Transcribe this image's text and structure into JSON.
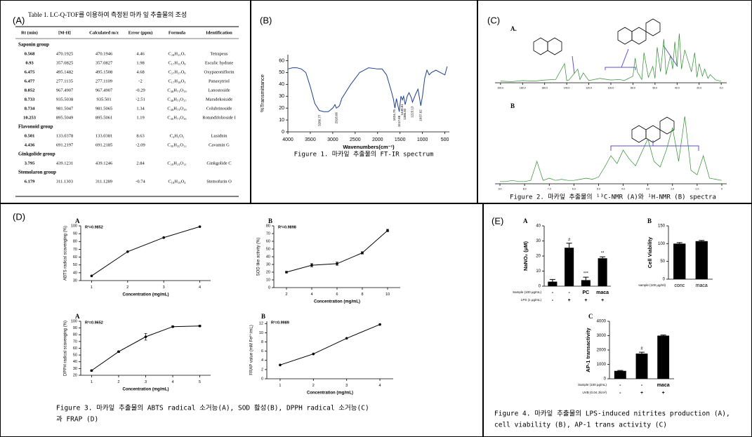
{
  "panel_labels": [
    "(A)",
    "(B)",
    "(C)",
    "(D)",
    "(E)"
  ],
  "table": {
    "title": "Table 1. LC-Q-TOF를 이용하여 측정된 마카 잎 추출물의 조성",
    "columns": [
      "Rt (min)",
      "[M-H]",
      "Calculated m/z",
      "Error (ppm)",
      "Formula",
      "Identification"
    ],
    "groups": [
      {
        "name": "Saponin group",
        "rows": [
          [
            "0.568",
            "470.1925",
            "470.1946",
            "4.46",
            "C₂₈H₂₅O₇",
            "Tetrapeus"
          ],
          [
            "0.93",
            "357.0825",
            "357.0827",
            "1.98",
            "C₁₇H₁₅O₉",
            "Esculic hydrate"
          ],
          [
            "6.475",
            "495.1482",
            "495.1508",
            "4.68",
            "C₂₇H₂₇O₉",
            "Oxypaeoniflorin"
          ],
          [
            "6.477",
            "277.1135",
            "277.1109",
            "-2",
            "C₁₇H₁₈O₃",
            "Panaxytriol"
          ],
          [
            "8.052",
            "967.4907",
            "967.4907",
            "-0.29",
            "C₄₈H₇₁O₁₉",
            "Lanostoside"
          ],
          [
            "8.733",
            "935.5038",
            "935.501",
            "-2.51",
            "C₄₈H₇₁O₁₇",
            "Marsdekoiside"
          ],
          [
            "8.734",
            "981.5047",
            "981.5065",
            "1.34",
            "C₄₈H₇₃O₁₉",
            "Colubrinoside"
          ],
          [
            "10.253",
            "895.5049",
            "895.5061",
            "1.19",
            "C₄₆H₇₁O₁₆",
            "Rotundifolioside I"
          ]
        ]
      },
      {
        "name": "Flavonoid group",
        "rows": [
          [
            "0.501",
            "133.0378",
            "133.0381",
            "8.63",
            "C₄H₅O₅",
            "Lusidnin"
          ],
          [
            "4.436",
            "691.2197",
            "691.2185",
            "-2.09",
            "C₃₆H₃₅O₁₂",
            "Cavamin G"
          ]
        ]
      },
      {
        "name": "Ginkgolide group",
        "rows": [
          [
            "3.795",
            "439.1231",
            "439.1246",
            "2.84",
            "C₂₀H₂₃O₁₁",
            "Ginkgolide C"
          ]
        ]
      },
      {
        "name": "Stemolaron group",
        "rows": [
          [
            "6.179",
            "311.1303",
            "311.1289",
            "-0.74",
            "C₁₈H₁₉O₄",
            "Stemofurin O"
          ]
        ]
      }
    ]
  },
  "figure_captions": {
    "fig1": "Figure 1. 마카잎 추출물의 FT-IR spectrum",
    "fig2": "Figure 2. 마카잎 추출물의 ¹³C-NMR (A)와 ¹H-NMR (B) spectra",
    "fig3": [
      "Figure 3. 마카잎 추출물의 ABTS radical 소거능(A), SOD 활성(B), DPPH radical 소거능(C)",
      "과 FRAP (D)"
    ],
    "fig4": [
      "Figure 4. 마카잎 추출물의 LPS-induced nitrites production (A),",
      "cell viability (B), AP-1 trans activity (C)"
    ]
  },
  "chart_data": [
    {
      "type": "line",
      "xlabel": "Wavenumbers(cm⁻¹)",
      "ylabel": "%Transmittance",
      "xlim": [
        4000,
        400
      ],
      "xticks": [
        4000,
        3500,
        3000,
        2500,
        2000,
        1500,
        1000,
        500
      ],
      "ylim": [
        0,
        65
      ],
      "yticks": [
        0,
        10,
        20,
        30,
        40,
        50,
        60
      ],
      "x": [
        4000,
        3900,
        3800,
        3700,
        3600,
        3500,
        3400,
        3300,
        3200,
        3100,
        3000,
        2950,
        2920,
        2880,
        2850,
        2800,
        2600,
        2400,
        2200,
        2000,
        1900,
        1800,
        1700,
        1650,
        1614,
        1580,
        1517,
        1480,
        1448,
        1420,
        1386,
        1340,
        1300,
        1250,
        1223,
        1150,
        1100,
        1037,
        1000,
        950,
        900,
        850,
        800,
        700,
        600,
        500,
        450
      ],
      "series": [
        {
          "color": "#1f3f8f",
          "values": [
            53,
            54,
            54,
            53,
            50,
            38,
            24,
            18,
            17,
            17,
            20,
            23,
            20,
            21,
            22,
            28,
            40,
            50,
            54,
            53,
            53,
            48,
            35,
            28,
            20,
            28,
            17,
            30,
            27,
            30,
            23,
            30,
            33,
            29,
            25,
            32,
            36,
            22,
            30,
            45,
            52,
            48,
            50,
            52,
            50,
            48,
            55
          ]
        }
      ],
      "peaks": [
        3286.77,
        2918.66,
        1624.75,
        1517.68,
        1448.61,
        1386.82,
        1223.13,
        1037.62
      ]
    },
    {
      "type": "line",
      "label": "A.",
      "xlim": [
        205,
        -5
      ],
      "xticks": [
        {
          "value": 200,
          "label": "200.0"
        },
        {
          "value": 180,
          "label": "180.0"
        },
        {
          "value": 160,
          "label": "160.0"
        },
        {
          "value": 140,
          "label": "140.0"
        },
        {
          "value": 120,
          "label": "120.0"
        },
        {
          "value": 100,
          "label": "100.0"
        },
        {
          "value": 80,
          "label": "80.0"
        },
        {
          "value": 60,
          "label": "60.0"
        },
        {
          "value": 40,
          "label": "40.0"
        },
        {
          "value": 20,
          "label": "20.0"
        },
        {
          "value": 0,
          "label": "0.0"
        }
      ],
      "ylim": [
        0,
        10
      ],
      "x": [
        200,
        190,
        180,
        170,
        160,
        150,
        142,
        140,
        138,
        130,
        128,
        125,
        120,
        110,
        100,
        92,
        88,
        80,
        78,
        76,
        72,
        70,
        66,
        62,
        60,
        58,
        55,
        52,
        50,
        46,
        44,
        42,
        40,
        38,
        36,
        33,
        30,
        27,
        24,
        22,
        20,
        17,
        15,
        12,
        10,
        5,
        0
      ],
      "series": [
        {
          "color": "#2e8b2e",
          "values": [
            0.3,
            0.2,
            0.4,
            0.3,
            0.5,
            0.6,
            3.5,
            0.4,
            0.5,
            2.5,
            0.6,
            1.8,
            0.4,
            0.8,
            0.5,
            0.6,
            0.4,
            1.2,
            4.5,
            2.0,
            0.6,
            5.5,
            1.0,
            3.0,
            0.8,
            6.5,
            2.0,
            8.0,
            1.5,
            5.0,
            2.5,
            7.5,
            3.0,
            9.0,
            2.5,
            6.0,
            4.0,
            2.0,
            5.5,
            1.0,
            3.5,
            1.2,
            2.5,
            0.8,
            1.5,
            0.5,
            0.3
          ]
        }
      ]
    },
    {
      "type": "line",
      "label": "B",
      "xlim": [
        9.2,
        -0.2
      ],
      "xticks": [
        {
          "value": 9,
          "label": "9.0"
        },
        {
          "value": 8,
          "label": "8.0"
        },
        {
          "value": 7,
          "label": "7.0"
        },
        {
          "value": 6,
          "label": "6.0"
        },
        {
          "value": 5,
          "label": "5.0"
        },
        {
          "value": 4,
          "label": "4.0"
        },
        {
          "value": 3,
          "label": "3.0"
        },
        {
          "value": 2,
          "label": "2.0"
        },
        {
          "value": 1,
          "label": "1.0"
        },
        0
      ],
      "ylim": [
        0,
        7
      ],
      "x": [
        9,
        8.75,
        8.5,
        8.25,
        8,
        7.75,
        7.5,
        7.25,
        7,
        6.75,
        6.5,
        6.25,
        6,
        5.75,
        5.5,
        5.25,
        5,
        4.75,
        4.5,
        4.25,
        4,
        3.75,
        3.5,
        3.25,
        3,
        2.75,
        2.5,
        2.25,
        2,
        1.75,
        1.5,
        1.25,
        1,
        0.75,
        0.5,
        0.25,
        0
      ],
      "series": [
        {
          "color": "#2e8b2e",
          "values": [
            0.2,
            0.2,
            0.3,
            0.2,
            0.2,
            0.3,
            2,
            0.3,
            0.5,
            0.3,
            0.4,
            0.3,
            0.3,
            0.4,
            0.5,
            0.4,
            0.6,
            1.5,
            2.5,
            1.8,
            3,
            2.2,
            1.6,
            2.8,
            4,
            2,
            1.5,
            3,
            5,
            2,
            6,
            1.2,
            0.8,
            2.5,
            0.5,
            0.4,
            0.3
          ]
        }
      ]
    },
    {
      "type": "line",
      "label": "A",
      "r2": "R²=0.9852",
      "markers": true,
      "xlabel": "Concentration (mg/mL)",
      "ylabel": "ABTS radical scavenging (%)",
      "x": [
        1,
        2,
        3,
        4
      ],
      "xlim": [
        0.7,
        4.3
      ],
      "xticks": [
        1,
        2,
        3,
        4
      ],
      "ylim": [
        30,
        100
      ],
      "yticks": [
        30,
        40,
        50,
        60,
        70,
        80,
        90,
        100
      ],
      "series": [
        {
          "color": "#000000",
          "values": [
            36,
            67,
            85,
            99
          ]
        }
      ]
    },
    {
      "type": "line",
      "label": "B",
      "r2": "R²=0.9898",
      "markers": true,
      "xlabel": "Concentration (mg/mL)",
      "ylabel": "SOD like activity (%)",
      "x": [
        2,
        4,
        6,
        8,
        10
      ],
      "xlim": [
        1,
        11
      ],
      "xticks": [
        2,
        4,
        6,
        8,
        10
      ],
      "ylim": [
        0,
        80
      ],
      "yticks": [
        0,
        10,
        20,
        30,
        40,
        50,
        60,
        70,
        80
      ],
      "series": [
        {
          "color": "#000000",
          "values": [
            20,
            29,
            31,
            45,
            74
          ],
          "errors": [
            1,
            2,
            2,
            1.5,
            1.5
          ]
        }
      ]
    },
    {
      "type": "line",
      "label": "A",
      "r2": "R²=0.9652",
      "markers": true,
      "xlabel": "Concentration (mg/mL)",
      "ylabel": "DPPH radical scavenging (%)",
      "x": [
        1,
        2,
        3,
        4,
        5
      ],
      "xlim": [
        0.6,
        5.4
      ],
      "xticks": [
        1,
        2,
        3,
        4,
        5
      ],
      "ylim": [
        20,
        100
      ],
      "yticks": [
        20,
        30,
        40,
        50,
        60,
        70,
        80,
        90,
        100
      ],
      "series": [
        {
          "color": "#000000",
          "values": [
            27,
            55,
            77,
            92,
            93
          ],
          "errors": [
            1,
            1,
            5,
            1,
            1
          ]
        }
      ]
    },
    {
      "type": "line",
      "label": "B",
      "r2": "R²=0.9989",
      "markers": true,
      "xlabel": "Concentration (mg/mL)",
      "ylabel": "FRAP value (mM Fe²⁺/mL)",
      "x": [
        1,
        2,
        3,
        4
      ],
      "xlim": [
        0.6,
        4.4
      ],
      "xticks": [
        1,
        2,
        3,
        4
      ],
      "ylim": [
        0,
        12.5
      ],
      "yticks": [
        0,
        2,
        4,
        6,
        8,
        10,
        12
      ],
      "series": [
        {
          "color": "#000000",
          "values": [
            3,
            5.4,
            8.8,
            11.8
          ]
        }
      ]
    },
    {
      "type": "bar",
      "label": "A",
      "ylabel": "NaNO₂ (μM)",
      "color": "#000000",
      "ylim": [
        0,
        40
      ],
      "yticks": [
        0,
        10,
        20,
        30,
        40
      ],
      "values": [
        3,
        25.5,
        4,
        18.5
      ],
      "errors": [
        1.5,
        3,
        2,
        1
      ],
      "annotations": [
        null,
        "#",
        "***",
        "**"
      ],
      "condition_rows": [
        {
          "label": "Sample (100 μg/mL)",
          "values": [
            "-",
            "-",
            "PC",
            "maca"
          ]
        },
        {
          "label": "LPS (1 μg/mL)",
          "values": [
            "-",
            "+",
            "+",
            "+"
          ]
        }
      ]
    },
    {
      "type": "bar",
      "label": "B",
      "ylabel": "Cell Viability",
      "xlabel": "sample (100 μg/ml)",
      "color": "#000000",
      "ylim": [
        0,
        150
      ],
      "yticks": [
        0,
        50,
        100,
        150
      ],
      "categories": [
        "conc",
        "maca"
      ],
      "values": [
        100,
        107
      ],
      "errors": [
        3,
        2
      ]
    },
    {
      "type": "bar",
      "label": "C",
      "ylabel": "AP-1 transactivity",
      "color": "#000000",
      "ylim": [
        0,
        4000
      ],
      "yticks": [
        0,
        1000,
        2000,
        3000,
        4000
      ],
      "values": [
        550,
        1750,
        3000
      ],
      "errors": [
        30,
        100,
        40
      ],
      "annotations": [
        null,
        "#",
        null
      ],
      "condition_rows": [
        {
          "label": "Sample (100 μg/mL)",
          "values": [
            "-",
            "-",
            "maca"
          ]
        },
        {
          "label": "UVB (0.04 J/cm²)",
          "values": [
            "-",
            "+",
            "+"
          ]
        }
      ]
    }
  ]
}
